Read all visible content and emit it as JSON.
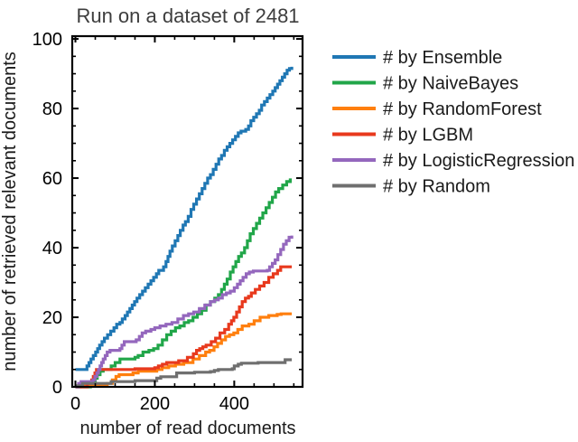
{
  "chart_data": {
    "type": "line",
    "step": true,
    "title": "Run on a dataset of 2481",
    "xlabel": "number of read documents",
    "ylabel": "number of retrieved relevant documents",
    "xlim": [
      -8,
      572
    ],
    "ylim": [
      0,
      100.8
    ],
    "xticks_major": [
      0,
      200,
      400
    ],
    "xticks_minor": [
      50,
      100,
      150,
      250,
      300,
      350,
      450,
      500,
      550
    ],
    "yticks_major": [
      0,
      20,
      40,
      60,
      80,
      100
    ],
    "yticks_minor": [
      5,
      10,
      15,
      25,
      30,
      35,
      45,
      50,
      55,
      65,
      70,
      75,
      85,
      90,
      95
    ],
    "grid": false,
    "legend_position": "right-outside",
    "colors": {
      "axis": "#000000",
      "title": "#3d3d3d",
      "text": "#1a1a1a"
    },
    "series": [
      {
        "name": "# by Ensemble",
        "color": "#1f77b4",
        "points": [
          [
            0,
            5
          ],
          [
            25,
            5
          ],
          [
            29,
            6
          ],
          [
            34,
            7
          ],
          [
            39,
            8
          ],
          [
            45,
            9
          ],
          [
            51,
            10
          ],
          [
            56,
            11
          ],
          [
            61,
            12
          ],
          [
            67,
            13
          ],
          [
            73,
            14
          ],
          [
            81,
            15
          ],
          [
            89,
            16
          ],
          [
            97,
            17
          ],
          [
            104,
            18
          ],
          [
            112,
            18.5
          ],
          [
            118,
            19.5
          ],
          [
            125,
            20.5
          ],
          [
            131,
            21.5
          ],
          [
            137,
            22.5
          ],
          [
            143,
            23.5
          ],
          [
            149,
            24.5
          ],
          [
            155,
            25.5
          ],
          [
            162,
            26.5
          ],
          [
            169,
            27.5
          ],
          [
            176,
            28.5
          ],
          [
            183,
            29.5
          ],
          [
            190,
            30.5
          ],
          [
            197,
            31.5
          ],
          [
            204,
            32.5
          ],
          [
            210,
            33.5
          ],
          [
            222,
            34.5
          ],
          [
            228,
            36
          ],
          [
            233,
            37.5
          ],
          [
            238,
            39
          ],
          [
            244,
            40.5
          ],
          [
            251,
            42
          ],
          [
            258,
            43.5
          ],
          [
            264,
            45
          ],
          [
            271,
            46.5
          ],
          [
            277,
            47.5
          ],
          [
            284,
            49
          ],
          [
            291,
            51
          ],
          [
            298,
            52.5
          ],
          [
            305,
            54
          ],
          [
            312,
            55.5
          ],
          [
            319,
            57
          ],
          [
            326,
            58.5
          ],
          [
            333,
            60
          ],
          [
            340,
            61
          ],
          [
            347,
            62.5
          ],
          [
            354,
            64
          ],
          [
            361,
            65.5
          ],
          [
            368,
            66.5
          ],
          [
            375,
            68
          ],
          [
            382,
            69
          ],
          [
            389,
            70
          ],
          [
            396,
            71
          ],
          [
            403,
            72
          ],
          [
            410,
            73
          ],
          [
            417,
            73.5
          ],
          [
            429,
            74
          ],
          [
            436,
            75
          ],
          [
            442,
            76.5
          ],
          [
            449,
            77.5
          ],
          [
            456,
            78.5
          ],
          [
            463,
            79.5
          ],
          [
            469,
            81
          ],
          [
            476,
            82
          ],
          [
            483,
            83
          ],
          [
            490,
            84
          ],
          [
            497,
            85
          ],
          [
            503,
            86
          ],
          [
            509,
            87
          ],
          [
            515,
            88
          ],
          [
            521,
            89
          ],
          [
            527,
            90
          ],
          [
            533,
            91
          ],
          [
            539,
            91.5
          ],
          [
            545,
            92
          ]
        ]
      },
      {
        "name": "# by NaiveBayes",
        "color": "#21a649",
        "points": [
          [
            0,
            0
          ],
          [
            38,
            1
          ],
          [
            50,
            2.5
          ],
          [
            55,
            3.5
          ],
          [
            62,
            4.5
          ],
          [
            70,
            5
          ],
          [
            90,
            6
          ],
          [
            100,
            7
          ],
          [
            112,
            8
          ],
          [
            150,
            8.5
          ],
          [
            158,
            9
          ],
          [
            170,
            10
          ],
          [
            185,
            10.5
          ],
          [
            197,
            11
          ],
          [
            208,
            12
          ],
          [
            219,
            13.5
          ],
          [
            230,
            15
          ],
          [
            241,
            16
          ],
          [
            252,
            17
          ],
          [
            263,
            17.5
          ],
          [
            274,
            18.5
          ],
          [
            285,
            19
          ],
          [
            296,
            20
          ],
          [
            307,
            21
          ],
          [
            318,
            22
          ],
          [
            329,
            23.5
          ],
          [
            340,
            24.5
          ],
          [
            351,
            25.5
          ],
          [
            360,
            26.5
          ],
          [
            368,
            28
          ],
          [
            375,
            29.5
          ],
          [
            382,
            31
          ],
          [
            390,
            33
          ],
          [
            397,
            34.5
          ],
          [
            404,
            36
          ],
          [
            411,
            37.5
          ],
          [
            418,
            38.5
          ],
          [
            426,
            40
          ],
          [
            433,
            42
          ],
          [
            440,
            44
          ],
          [
            448,
            45.5
          ],
          [
            456,
            47
          ],
          [
            464,
            48.5
          ],
          [
            472,
            50
          ],
          [
            480,
            51.5
          ],
          [
            488,
            53
          ],
          [
            496,
            54.5
          ],
          [
            504,
            56
          ],
          [
            512,
            57
          ],
          [
            522,
            58
          ],
          [
            532,
            59
          ],
          [
            541,
            59.5
          ],
          [
            545,
            59.5
          ]
        ]
      },
      {
        "name": "# by RandomForest",
        "color": "#ff7f0e",
        "points": [
          [
            0,
            0
          ],
          [
            12,
            0.5
          ],
          [
            80,
            1
          ],
          [
            93,
            2
          ],
          [
            102,
            3
          ],
          [
            110,
            3.5
          ],
          [
            145,
            4
          ],
          [
            158,
            4.5
          ],
          [
            205,
            5
          ],
          [
            218,
            5.5
          ],
          [
            235,
            6
          ],
          [
            252,
            6.5
          ],
          [
            273,
            7
          ],
          [
            296,
            8
          ],
          [
            312,
            9
          ],
          [
            328,
            10
          ],
          [
            338,
            10.5
          ],
          [
            349,
            11.5
          ],
          [
            358,
            12.5
          ],
          [
            368,
            13.5
          ],
          [
            378,
            14.5
          ],
          [
            388,
            15
          ],
          [
            399,
            15.5
          ],
          [
            409,
            16.5
          ],
          [
            420,
            17.5
          ],
          [
            437,
            18
          ],
          [
            450,
            19
          ],
          [
            465,
            20
          ],
          [
            487,
            20.5
          ],
          [
            508,
            20.8
          ],
          [
            518,
            21
          ],
          [
            545,
            21
          ]
        ]
      },
      {
        "name": "# by LGBM",
        "color": "#e8391d",
        "points": [
          [
            0,
            0
          ],
          [
            30,
            1
          ],
          [
            41,
            2
          ],
          [
            45,
            3
          ],
          [
            49,
            4
          ],
          [
            53,
            5
          ],
          [
            150,
            5.2
          ],
          [
            200,
            5.5
          ],
          [
            209,
            6
          ],
          [
            219,
            6.5
          ],
          [
            230,
            7
          ],
          [
            260,
            7.5
          ],
          [
            282,
            8.5
          ],
          [
            297,
            9.5
          ],
          [
            305,
            10.5
          ],
          [
            313,
            11
          ],
          [
            321,
            11.5
          ],
          [
            329,
            12
          ],
          [
            342,
            13
          ],
          [
            353,
            14
          ],
          [
            364,
            15.5
          ],
          [
            376,
            16.5
          ],
          [
            386,
            18
          ],
          [
            393,
            19
          ],
          [
            399,
            20
          ],
          [
            406,
            21.5
          ],
          [
            413,
            23
          ],
          [
            420,
            24.5
          ],
          [
            428,
            25.5
          ],
          [
            436,
            26
          ],
          [
            443,
            27
          ],
          [
            453,
            28
          ],
          [
            464,
            29
          ],
          [
            475,
            30
          ],
          [
            487,
            31.5
          ],
          [
            498,
            32.5
          ],
          [
            509,
            33.5
          ],
          [
            517,
            34.5
          ],
          [
            545,
            34.5
          ]
        ]
      },
      {
        "name": "# by LogisticRegression",
        "color": "#9467bd",
        "points": [
          [
            0,
            0
          ],
          [
            8,
            1
          ],
          [
            14,
            1.5
          ],
          [
            44,
            2
          ],
          [
            49,
            3
          ],
          [
            54,
            4
          ],
          [
            58,
            5
          ],
          [
            62,
            6
          ],
          [
            66,
            7
          ],
          [
            70,
            8
          ],
          [
            75,
            9
          ],
          [
            80,
            10
          ],
          [
            87,
            10.5
          ],
          [
            112,
            11
          ],
          [
            117,
            12
          ],
          [
            123,
            13
          ],
          [
            153,
            13.5
          ],
          [
            161,
            14.5
          ],
          [
            168,
            15.5
          ],
          [
            177,
            16
          ],
          [
            190,
            16.5
          ],
          [
            200,
            17
          ],
          [
            213,
            17.5
          ],
          [
            228,
            18
          ],
          [
            243,
            18.5
          ],
          [
            258,
            19.5
          ],
          [
            272,
            20.5
          ],
          [
            285,
            21
          ],
          [
            298,
            21.5
          ],
          [
            312,
            22.5
          ],
          [
            326,
            23.5
          ],
          [
            340,
            24.5
          ],
          [
            350,
            25
          ],
          [
            360,
            25.5
          ],
          [
            370,
            26.5
          ],
          [
            380,
            27
          ],
          [
            390,
            27.5
          ],
          [
            400,
            28.5
          ],
          [
            408,
            29.5
          ],
          [
            415,
            30.5
          ],
          [
            422,
            31.5
          ],
          [
            430,
            32.5
          ],
          [
            438,
            33
          ],
          [
            448,
            33.3
          ],
          [
            483,
            33.5
          ],
          [
            489,
            34.5
          ],
          [
            496,
            35.5
          ],
          [
            503,
            36.5
          ],
          [
            510,
            38
          ],
          [
            517,
            39.5
          ],
          [
            524,
            41
          ],
          [
            531,
            42
          ],
          [
            538,
            43
          ],
          [
            545,
            43.5
          ]
        ]
      },
      {
        "name": "# by Random",
        "color": "#6f6f6f",
        "points": [
          [
            0,
            0.3
          ],
          [
            18,
            1
          ],
          [
            90,
            1.5
          ],
          [
            150,
            1.8
          ],
          [
            205,
            2.5
          ],
          [
            215,
            2.9
          ],
          [
            255,
            4
          ],
          [
            300,
            4.2
          ],
          [
            340,
            4.4
          ],
          [
            350,
            4.7
          ],
          [
            360,
            5
          ],
          [
            395,
            5.2
          ],
          [
            400,
            6
          ],
          [
            410,
            6.5
          ],
          [
            418,
            6.8
          ],
          [
            460,
            7
          ],
          [
            520,
            7
          ],
          [
            528,
            7.8
          ],
          [
            545,
            7.8
          ]
        ]
      }
    ]
  }
}
